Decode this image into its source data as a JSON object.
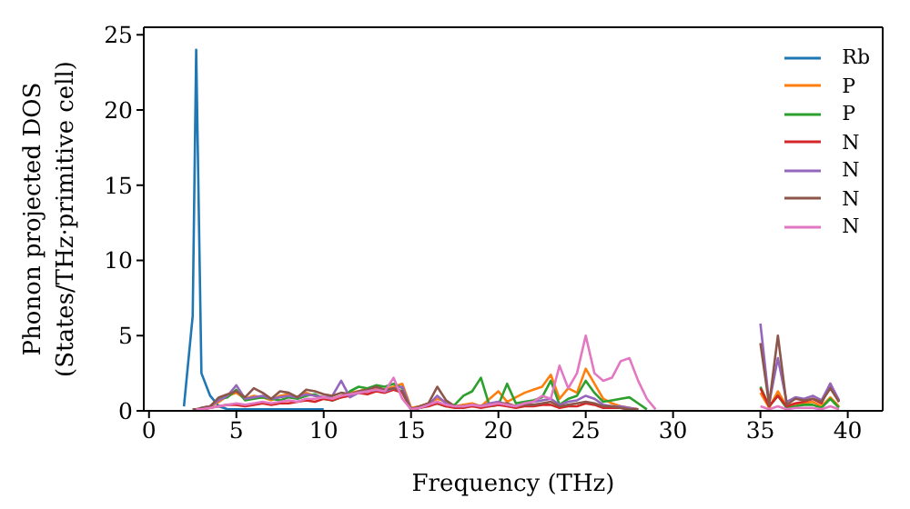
{
  "chart_data": {
    "type": "line",
    "xlabel": "Frequency (THz)",
    "ylabel": "Phonon projected DOS\n(States/THz·primitive cell)",
    "x": [
      2,
      2.5,
      2.7,
      3,
      3.5,
      4,
      4.5,
      5,
      5.5,
      6,
      6.5,
      7,
      7.5,
      8,
      8.5,
      9,
      9.5,
      10,
      10.5,
      11,
      11.5,
      12,
      12.5,
      13,
      13.5,
      14,
      14.5,
      15,
      15.5,
      16,
      16.5,
      17,
      17.5,
      18,
      18.5,
      19,
      19.5,
      20,
      20.5,
      21,
      21.5,
      22,
      22.5,
      23,
      23.5,
      24,
      24.5,
      25,
      25.5,
      26,
      26.5,
      27,
      27.5,
      28,
      28.5,
      29,
      29.5,
      30,
      30.5,
      31,
      31.5,
      32,
      32.5,
      33,
      33.5,
      34,
      34.5,
      35,
      35.5,
      36,
      36.5,
      37,
      37.5,
      38,
      38.5,
      39,
      39.5
    ],
    "xlim": [
      -0.3,
      42
    ],
    "ylim": [
      0,
      25.5
    ],
    "xticks": [
      0,
      5,
      10,
      15,
      20,
      25,
      30,
      35,
      40
    ],
    "yticks": [
      0,
      5,
      10,
      15,
      20,
      25
    ],
    "legend": "top right",
    "marker": "none",
    "line_style": "solid",
    "grid": false,
    "series": [
      {
        "name": "Rb",
        "color": "#1f77b4",
        "values": [
          0.3,
          6.3,
          24,
          2.5,
          1.0,
          0.3,
          0.1,
          0.1,
          0.1,
          0.1,
          0.1,
          0.1,
          0.1,
          0.1,
          0.1,
          0.1,
          0.1,
          0.1,
          null,
          null,
          null,
          null,
          null,
          null,
          null,
          null,
          null,
          null,
          null,
          null,
          null,
          null,
          null,
          null,
          null,
          null,
          null,
          null,
          null,
          null,
          null,
          null,
          null,
          null,
          null,
          null,
          null,
          null,
          null,
          null,
          null,
          null,
          null,
          null,
          null,
          null,
          null,
          null,
          null,
          null,
          null,
          null,
          null,
          null,
          null,
          null,
          null,
          null,
          null,
          null,
          null,
          null,
          null,
          null,
          null,
          null,
          null
        ]
      },
      {
        "name": "P",
        "color": "#ff7f0e",
        "values": [
          null,
          null,
          null,
          0.2,
          0.3,
          0.6,
          1.0,
          1.2,
          0.8,
          1.0,
          0.9,
          0.7,
          1.0,
          1.1,
          0.9,
          1.2,
          1.0,
          0.9,
          0.8,
          1.0,
          1.2,
          1.3,
          1.5,
          1.5,
          1.4,
          1.6,
          1.8,
          0.2,
          0.3,
          0.5,
          0.8,
          0.6,
          0.3,
          0.4,
          0.5,
          0.3,
          0.8,
          1.3,
          0.6,
          0.9,
          1.2,
          1.4,
          1.6,
          2.4,
          0.8,
          1.5,
          1.2,
          2.8,
          1.8,
          0.8,
          0.5,
          0.3,
          0.2,
          0.1,
          null,
          null,
          null,
          null,
          null,
          null,
          null,
          null,
          null,
          null,
          null,
          null,
          null,
          1.2,
          0.2,
          1.3,
          0.3,
          0.4,
          0.5,
          0.6,
          0.3,
          0.9,
          0.3
        ]
      },
      {
        "name": "P",
        "color": "#2ca02c",
        "values": [
          null,
          null,
          null,
          null,
          0.3,
          0.8,
          0.9,
          1.4,
          0.7,
          0.8,
          0.9,
          0.8,
          0.7,
          0.9,
          0.8,
          1.0,
          1.1,
          0.8,
          0.7,
          0.9,
          1.3,
          1.6,
          1.5,
          1.7,
          1.6,
          1.8,
          1.5,
          0.1,
          0.2,
          0.4,
          0.5,
          0.3,
          0.4,
          1.0,
          1.3,
          2.2,
          0.3,
          0.4,
          1.8,
          0.5,
          0.6,
          0.7,
          0.9,
          2.0,
          0.4,
          0.8,
          1.0,
          2.0,
          1.2,
          0.6,
          0.7,
          0.8,
          0.9,
          0.5,
          0.1,
          null,
          null,
          null,
          null,
          null,
          null,
          null,
          null,
          null,
          null,
          null,
          null,
          1.6,
          0.3,
          1.0,
          0.2,
          0.3,
          0.4,
          0.4,
          0.2,
          0.8,
          0.2
        ]
      },
      {
        "name": "N",
        "color": "#d62728",
        "values": [
          null,
          0.1,
          0.1,
          0.1,
          0.2,
          0.3,
          0.4,
          0.4,
          0.3,
          0.4,
          0.5,
          0.4,
          0.5,
          0.5,
          0.6,
          0.7,
          0.6,
          0.8,
          0.7,
          0.9,
          1.0,
          1.2,
          1.1,
          1.3,
          1.2,
          1.4,
          1.2,
          0.1,
          0.2,
          0.3,
          0.5,
          0.3,
          0.2,
          0.2,
          0.3,
          0.2,
          0.3,
          0.4,
          0.3,
          0.2,
          0.3,
          0.3,
          0.4,
          0.4,
          0.2,
          0.3,
          0.3,
          0.5,
          0.4,
          0.2,
          0.2,
          0.2,
          0.1,
          0.1,
          null,
          null,
          null,
          null,
          null,
          null,
          null,
          null,
          null,
          null,
          null,
          null,
          null,
          1.5,
          0.3,
          1.0,
          0.3,
          0.5,
          0.6,
          0.8,
          0.5,
          1.8,
          0.6
        ]
      },
      {
        "name": "N",
        "color": "#9467bd",
        "values": [
          null,
          null,
          null,
          0.2,
          0.3,
          0.7,
          1.0,
          1.7,
          0.8,
          0.9,
          1.0,
          0.8,
          0.9,
          1.0,
          0.9,
          1.1,
          1.0,
          0.9,
          1.0,
          2.0,
          0.9,
          1.2,
          1.3,
          1.4,
          1.3,
          1.5,
          1.6,
          0.1,
          0.2,
          0.4,
          1.0,
          0.5,
          0.3,
          0.3,
          0.4,
          0.3,
          0.5,
          0.6,
          0.4,
          0.3,
          0.5,
          0.6,
          0.7,
          0.8,
          0.4,
          0.6,
          0.7,
          1.0,
          0.8,
          0.4,
          0.3,
          0.3,
          0.2,
          0.1,
          null,
          null,
          null,
          null,
          null,
          null,
          null,
          null,
          null,
          null,
          null,
          null,
          null,
          5.8,
          0.5,
          3.5,
          0.6,
          0.9,
          0.8,
          1.0,
          0.7,
          1.8,
          0.7
        ]
      },
      {
        "name": "N",
        "color": "#8c564b",
        "values": [
          null,
          0.1,
          0.1,
          0.2,
          0.3,
          0.9,
          1.1,
          1.3,
          0.9,
          1.5,
          1.2,
          0.8,
          1.3,
          1.2,
          0.9,
          1.4,
          1.3,
          1.1,
          1.0,
          1.2,
          1.1,
          1.3,
          1.4,
          1.6,
          1.4,
          1.5,
          1.3,
          0.1,
          0.3,
          0.5,
          1.6,
          0.7,
          0.3,
          0.3,
          0.4,
          0.3,
          0.4,
          0.5,
          0.5,
          0.3,
          0.4,
          0.4,
          0.5,
          0.6,
          0.3,
          0.4,
          0.5,
          0.6,
          0.5,
          0.3,
          0.3,
          0.2,
          0.1,
          0.1,
          null,
          null,
          null,
          null,
          null,
          null,
          null,
          null,
          null,
          null,
          null,
          null,
          null,
          4.5,
          0.4,
          5.0,
          0.4,
          0.8,
          0.7,
          0.8,
          0.6,
          1.5,
          0.6
        ]
      },
      {
        "name": "N",
        "color": "#e377c2",
        "values": [
          null,
          null,
          0.1,
          0.1,
          0.2,
          0.3,
          0.4,
          0.5,
          0.4,
          0.5,
          0.6,
          0.5,
          0.6,
          0.7,
          0.6,
          0.8,
          0.8,
          0.9,
          0.8,
          1.0,
          1.1,
          1.2,
          1.3,
          1.4,
          1.3,
          2.2,
          0.8,
          0.1,
          0.2,
          0.4,
          0.6,
          0.4,
          0.3,
          0.3,
          0.4,
          0.3,
          0.4,
          0.5,
          0.4,
          0.3,
          0.5,
          0.6,
          1.0,
          0.8,
          3.0,
          1.5,
          2.5,
          5.0,
          2.5,
          2.0,
          2.2,
          3.3,
          3.5,
          2.0,
          0.8,
          0.1,
          null,
          null,
          null,
          null,
          null,
          null,
          null,
          null,
          null,
          null,
          null,
          0.3,
          0.1,
          0.3,
          0.1,
          0.2,
          0.2,
          0.2,
          0.1,
          0.3,
          0.1
        ]
      }
    ]
  }
}
